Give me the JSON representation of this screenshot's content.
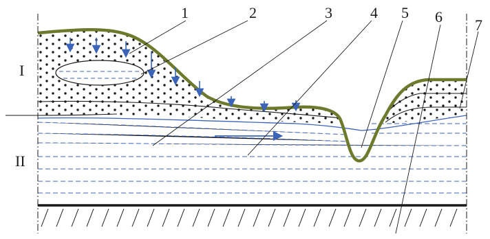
{
  "zone_labels": [
    {
      "id": "I",
      "text": "I"
    },
    {
      "id": "II",
      "text": "II"
    }
  ],
  "callout_labels": [
    "1",
    "2",
    "3",
    "4",
    "5",
    "6",
    "7"
  ],
  "colors": {
    "surface": "#6b7a2c",
    "water": "#3b63b8",
    "ink": "#1a1a1a",
    "background": "#ffffff"
  },
  "icons": {
    "infiltration_arrow": "arrow-down-icon",
    "flow_arrow": "arrow-right-icon"
  }
}
